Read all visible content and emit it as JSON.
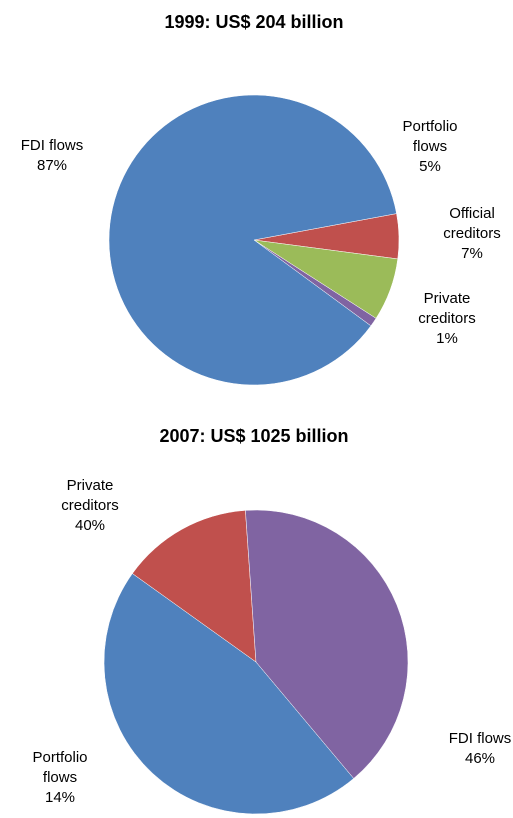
{
  "chart_data": [
    {
      "type": "pie",
      "title": "1999: US$ 204 billion",
      "slices": [
        {
          "label": [
            "Portfolio",
            "flows"
          ],
          "value": 5,
          "pct_label": "5%",
          "color": "#C0504D"
        },
        {
          "label": [
            "Official",
            "creditors"
          ],
          "value": 7,
          "pct_label": "7%",
          "color": "#9BBB59"
        },
        {
          "label": [
            "Private",
            "creditors"
          ],
          "value": 1,
          "pct_label": "1%",
          "color": "#8064A2"
        },
        {
          "label": [
            "FDI flows"
          ],
          "value": 87,
          "pct_label": "87%",
          "color": "#4F81BD"
        }
      ]
    },
    {
      "type": "pie",
      "title": "2007: US$ 1025 billion",
      "slices": [
        {
          "label": [
            "FDI flows"
          ],
          "value": 46,
          "pct_label": "46%",
          "color": "#4F81BD"
        },
        {
          "label": [
            "Portfolio",
            "flows"
          ],
          "value": 14,
          "pct_label": "14%",
          "color": "#C0504D"
        },
        {
          "label": [
            "Private",
            "creditors"
          ],
          "value": 40,
          "pct_label": "40%",
          "color": "#8064A2"
        }
      ]
    }
  ]
}
